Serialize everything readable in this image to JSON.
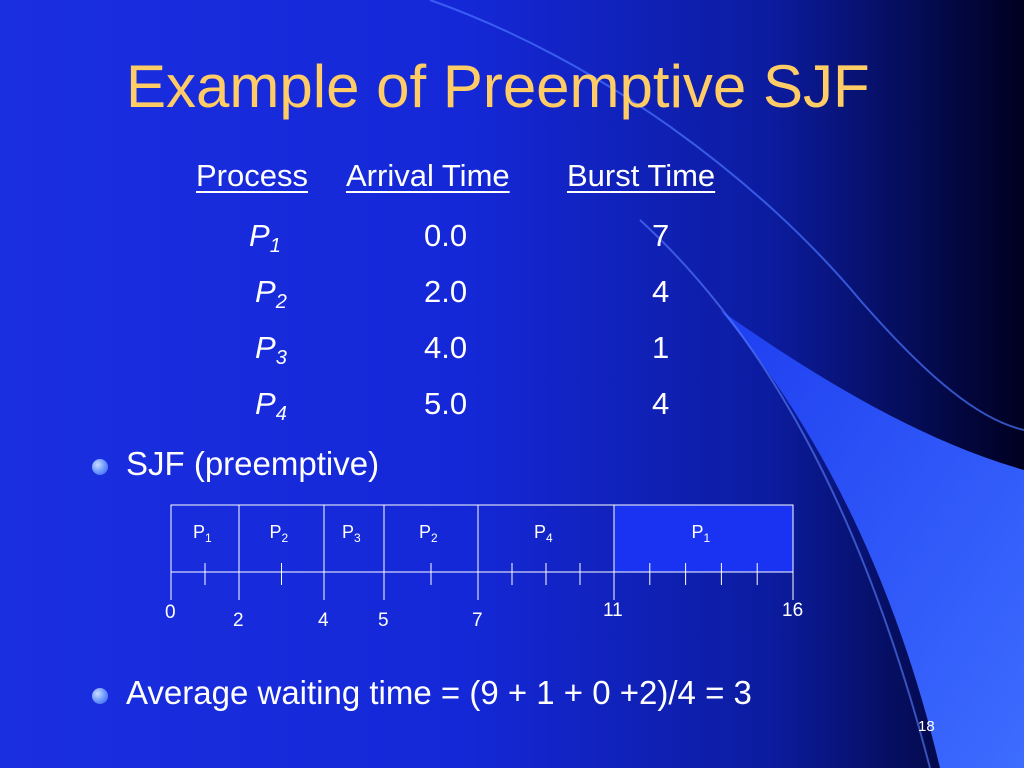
{
  "slide": {
    "title": "Example of Preemptive SJF",
    "page_number": "18",
    "colors": {
      "title": "#ffcc66",
      "text": "#ffffff",
      "background": "#1a2fe0",
      "accent": "#3a66ff"
    }
  },
  "table": {
    "headers": [
      "Process",
      "Arrival Time",
      "Burst Time"
    ],
    "rows": [
      {
        "name": "P",
        "sub": "1",
        "arrival": "0.0",
        "burst": "7"
      },
      {
        "name": "P",
        "sub": "2",
        "arrival": "2.0",
        "burst": "4"
      },
      {
        "name": "P",
        "sub": "3",
        "arrival": "4.0",
        "burst": "1"
      },
      {
        "name": "P",
        "sub": "4",
        "arrival": "5.0",
        "burst": "4"
      }
    ]
  },
  "bullets": [
    {
      "text": "SJF (preemptive)"
    },
    {
      "text": "Average waiting time = (9 + 1 + 0 +2)/4 = 3"
    }
  ],
  "gantt": {
    "blocks": [
      {
        "p": "P",
        "sub": "1",
        "start": 0,
        "end": 2
      },
      {
        "p": "P",
        "sub": "2",
        "start": 2,
        "end": 4
      },
      {
        "p": "P",
        "sub": "3",
        "start": 4,
        "end": 5
      },
      {
        "p": "P",
        "sub": "2",
        "start": 5,
        "end": 7
      },
      {
        "p": "P",
        "sub": "4",
        "start": 7,
        "end": 11
      },
      {
        "p": "P",
        "sub": "1",
        "start": 11,
        "end": 16
      }
    ],
    "time_labels": [
      "0",
      "2",
      "4",
      "5",
      "7",
      "11",
      "16"
    ]
  }
}
